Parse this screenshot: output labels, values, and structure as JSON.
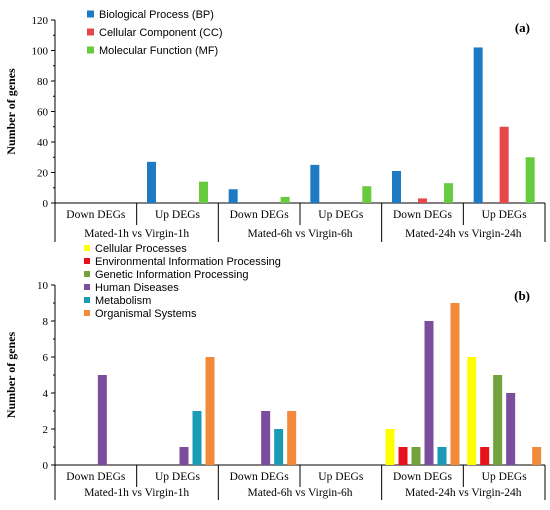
{
  "chart_data": [
    {
      "type": "bar",
      "panel_label": "(a)",
      "ylabel": "Number of genes",
      "ylim": [
        0,
        120
      ],
      "yticks": [
        0,
        20,
        40,
        60,
        80,
        100,
        120
      ],
      "categories": [
        "Down DEGs",
        "Up DEGs",
        "Down DEGs",
        "Up DEGs",
        "Down DEGs",
        "Up DEGs"
      ],
      "groups": [
        "Mated-1h vs Virgin-1h",
        "Mated-6h vs Virgin-6h",
        "Mated-24h vs Virgin-24h"
      ],
      "legend_position": "top-left",
      "series": [
        {
          "name": "Biological Process (BP)",
          "color": "#1f7ac4",
          "values": [
            0,
            27,
            9,
            25,
            21,
            102
          ]
        },
        {
          "name": "Cellular Component (CC)",
          "color": "#e8474a",
          "values": [
            0,
            0,
            0,
            0,
            3,
            50
          ]
        },
        {
          "name": "Molecular Function (MF)",
          "color": "#66cc3e",
          "values": [
            0,
            14,
            4,
            11,
            13,
            30
          ]
        }
      ]
    },
    {
      "type": "bar",
      "panel_label": "(b)",
      "ylabel": "Number of genes",
      "ylim": [
        0,
        10
      ],
      "yticks": [
        0,
        2,
        4,
        6,
        8,
        10
      ],
      "categories": [
        "Down DEGs",
        "Up DEGs",
        "Down DEGs",
        "Up DEGs",
        "Down DEGs",
        "Up DEGs"
      ],
      "groups": [
        "Mated-1h vs Virgin-1h",
        "Mated-6h vs Virgin-6h",
        "Mated-24h vs Virgin-24h"
      ],
      "legend_position": "top-left",
      "series": [
        {
          "name": "Cellular Processes",
          "color": "#ffff00",
          "values": [
            0,
            0,
            0,
            0,
            2,
            6
          ]
        },
        {
          "name": "Environmental Information Processing",
          "color": "#e8101a",
          "values": [
            0,
            0,
            0,
            0,
            1,
            1
          ]
        },
        {
          "name": "Genetic Information Processing",
          "color": "#72a23c",
          "values": [
            0,
            0,
            0,
            0,
            1,
            5
          ]
        },
        {
          "name": "Human Diseases",
          "color": "#7b4d9c",
          "values": [
            5,
            1,
            3,
            0,
            8,
            4
          ]
        },
        {
          "name": "Metabolism",
          "color": "#1a9bb5",
          "values": [
            0,
            3,
            2,
            0,
            1,
            0
          ]
        },
        {
          "name": "Organismal Systems",
          "color": "#f28a3a",
          "values": [
            0,
            6,
            3,
            0,
            9,
            1
          ]
        }
      ]
    }
  ]
}
